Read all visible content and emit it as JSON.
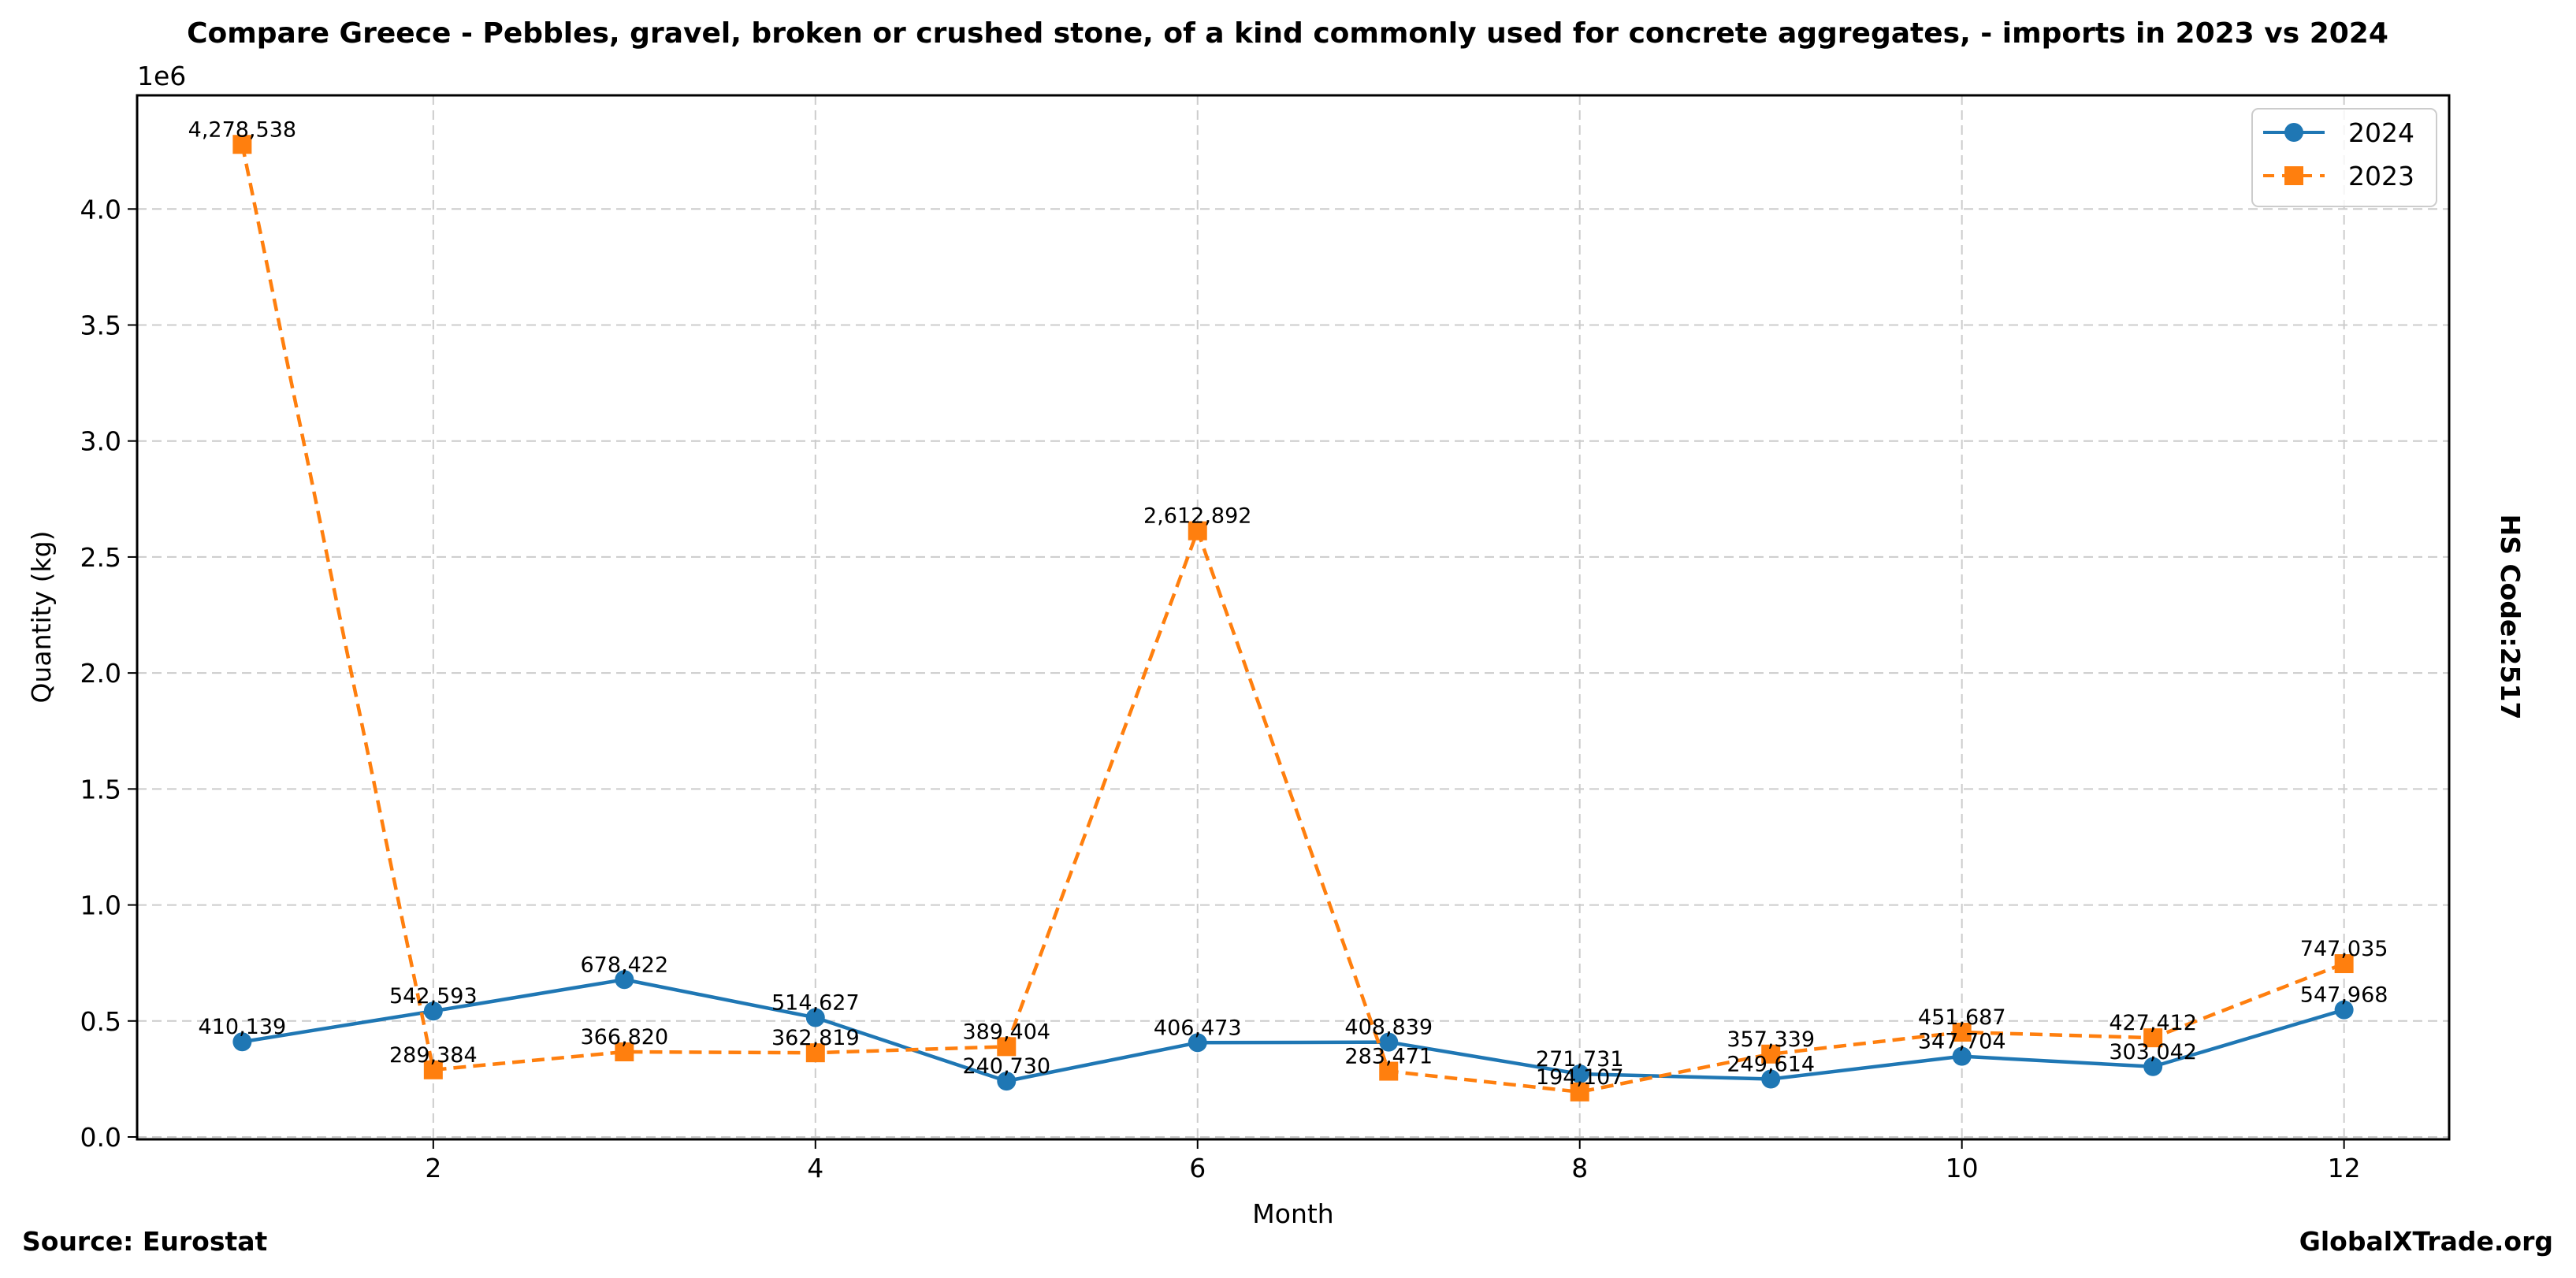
{
  "chart_data": {
    "type": "line",
    "title": "Compare Greece - Pebbles, gravel, broken or crushed stone, of a kind commonly used for concrete aggregates, - imports in 2023 vs 2024",
    "xlabel": "Month",
    "ylabel": "Quantity (kg)",
    "y_offset_label": "1e6",
    "y_scale": 1000000,
    "xlim": [
      0.45,
      12.55
    ],
    "ylim": [
      0,
      4490000
    ],
    "x_ticks": [
      2,
      4,
      6,
      8,
      10,
      12
    ],
    "x_tick_labels": [
      "2",
      "4",
      "6",
      "8",
      "10",
      "12"
    ],
    "y_ticks": [
      0,
      500000,
      1000000,
      1500000,
      2000000,
      2500000,
      3000000,
      3500000,
      4000000
    ],
    "y_tick_labels": [
      "0.0",
      "0.5",
      "1.0",
      "1.5",
      "2.0",
      "2.5",
      "3.0",
      "3.5",
      "4.0"
    ],
    "grid": true,
    "legend_position": "top-right",
    "x": [
      1,
      2,
      3,
      4,
      5,
      6,
      7,
      8,
      9,
      10,
      11,
      12
    ],
    "series": [
      {
        "name": "2024",
        "color": "#1f77b4",
        "marker": "circle",
        "line_style": "solid",
        "values": [
          410139,
          542593,
          678422,
          514627,
          240730,
          406473,
          408839,
          271731,
          249614,
          347704,
          303042,
          547968
        ],
        "labels": [
          "410,139",
          "542,593",
          "678,422",
          "514,627",
          "240,730",
          "406,473",
          "408,839",
          "271,731",
          "249,614",
          "347,704",
          "303,042",
          "547,968"
        ]
      },
      {
        "name": "2023",
        "color": "#ff7f0e",
        "marker": "square",
        "line_style": "dashed",
        "values": [
          4278538,
          289384,
          366820,
          362819,
          389404,
          2612892,
          283471,
          194107,
          357339,
          451687,
          427412,
          747035
        ],
        "labels": [
          "4,278,538",
          "289,384",
          "366,820",
          "362,819",
          "389,404",
          "2,612,892",
          "283,471",
          "194,107",
          "357,339",
          "451,687",
          "427,412",
          "747,035"
        ]
      }
    ],
    "side_label": "HS Code:2517",
    "source": "Source: Eurostat",
    "brand": "GlobalXTrade.org"
  }
}
